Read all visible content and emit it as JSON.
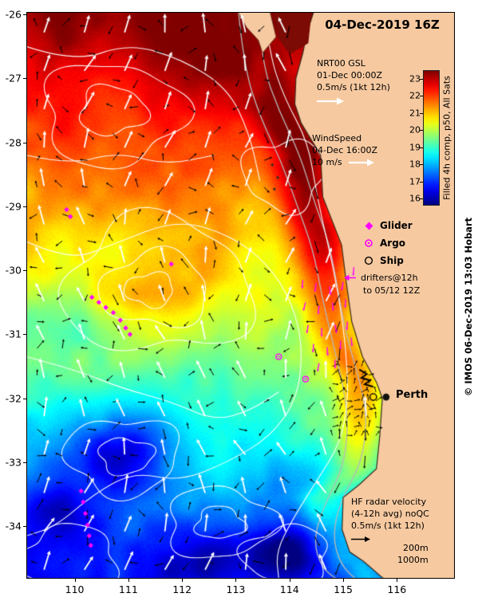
{
  "title": "04-Dec-2019 16Z",
  "annotations": {
    "gsl": {
      "l1": "NRT00 GSL",
      "l2": "01-Dec 00:00Z",
      "l3": "0.5m/s (1kt 12h)"
    },
    "wind": {
      "l1": "WindSpeed",
      "l2": "04-Dec 16:00Z",
      "l3": "10 m/s"
    },
    "hf": {
      "l1": "HF radar velocity",
      "l2": "(4-12h avg) noQC",
      "l3": "0.5m/s (1kt 12h)"
    },
    "isobaths": {
      "c200": "200m",
      "c1000": "1000m"
    },
    "perth": "Perth",
    "credit": "© IMOS 06-Dec-2019 13:03 Hobart"
  },
  "legend": {
    "glider": "Glider",
    "argo": "Argo",
    "ship": "Ship",
    "drifters_l1": "drifters@12h",
    "drifters_l2": "to 05/12 12Z"
  },
  "colorbar": {
    "label": "Filled 4h comp, p50, All Sats",
    "ticks": [
      23,
      22,
      21,
      20,
      19,
      18,
      17,
      16
    ],
    "tmin": 15.6,
    "tmax": 23.5
  },
  "axes": {
    "x_ticks": [
      110,
      111,
      112,
      113,
      114,
      115,
      116
    ],
    "y_ticks": [
      -26,
      -27,
      -28,
      -29,
      -30,
      -31,
      -32,
      -33,
      -34
    ],
    "lon_min": 109.1,
    "lon_max": 117.08,
    "lat_min": -34.82,
    "lat_max": -25.96
  },
  "map": {
    "land_color": "#f6c9a0",
    "marker_color": "#ff00ff",
    "coast": [
      [
        -25.96,
        114.45
      ],
      [
        -26.3,
        114.32
      ],
      [
        -26.6,
        114.25
      ],
      [
        -27.0,
        114.12
      ],
      [
        -27.4,
        114.1
      ],
      [
        -27.7,
        114.22
      ],
      [
        -28.2,
        114.58
      ],
      [
        -28.85,
        114.62
      ],
      [
        -29.6,
        114.97
      ],
      [
        -30.2,
        115.06
      ],
      [
        -30.8,
        115.16
      ],
      [
        -31.35,
        115.36
      ],
      [
        -31.75,
        115.62
      ],
      [
        -32.0,
        115.73
      ],
      [
        -32.6,
        115.68
      ],
      [
        -33.1,
        115.62
      ],
      [
        -33.35,
        115.3
      ],
      [
        -33.55,
        115.0
      ],
      [
        -34.05,
        114.98
      ],
      [
        -34.4,
        115.12
      ],
      [
        -34.55,
        115.38
      ],
      [
        -34.84,
        115.78
      ]
    ],
    "peninsula": [
      [
        113.0,
        -25.9
      ],
      [
        113.62,
        -25.9
      ],
      [
        113.75,
        -26.35
      ],
      [
        113.5,
        -26.6
      ],
      [
        113.42,
        -26.4
      ],
      [
        113.2,
        -26.2
      ]
    ],
    "bay": [
      [
        113.7,
        -25.9
      ],
      [
        114.42,
        -25.9
      ],
      [
        114.35,
        -26.45
      ],
      [
        114.0,
        -26.62
      ],
      [
        113.78,
        -26.35
      ]
    ],
    "islands": [
      [
        113.68,
        -28.35
      ],
      [
        113.78,
        -28.55
      ],
      [
        113.72,
        -28.73
      ]
    ],
    "eddies": [
      [
        111.45,
        -30.35,
        1.05,
        0.65,
        0.95
      ],
      [
        110.85,
        -32.85,
        0.85,
        0.55,
        -1.7
      ],
      [
        113.95,
        -34.35,
        0.95,
        0.5,
        -2.1
      ],
      [
        109.7,
        -33.8,
        0.8,
        0.5,
        -1.2
      ],
      [
        112.3,
        -34.6,
        0.9,
        0.4,
        -0.9
      ],
      [
        112.8,
        -26.7,
        1.0,
        0.5,
        0.55
      ],
      [
        109.9,
        -30.9,
        0.7,
        0.45,
        -0.5
      ]
    ],
    "ssh_loops": [
      [
        110.7,
        -27.55,
        1.3,
        0.8,
        1
      ],
      [
        110.7,
        -27.5,
        0.62,
        0.38,
        2
      ],
      [
        111.55,
        -30.25,
        1.75,
        1.05,
        3
      ],
      [
        111.5,
        -30.3,
        1.0,
        0.58,
        4
      ],
      [
        111.4,
        -30.3,
        0.45,
        0.26,
        5
      ],
      [
        110.9,
        -32.9,
        1.05,
        0.6,
        6
      ],
      [
        110.95,
        -32.9,
        0.5,
        0.28,
        7
      ],
      [
        112.7,
        -33.95,
        1.0,
        0.55,
        8
      ],
      [
        112.7,
        -33.95,
        0.45,
        0.25,
        9
      ],
      [
        109.9,
        -34.5,
        0.9,
        0.5,
        10
      ],
      [
        113.95,
        -34.45,
        0.8,
        0.45,
        11
      ],
      [
        113.9,
        -28.5,
        0.75,
        0.55,
        12
      ]
    ],
    "ssh_lines": [
      [
        [
          113.55,
          -25.96
        ],
        [
          113.62,
          -26.6
        ],
        [
          113.9,
          -27.3
        ],
        [
          114.35,
          -28.0
        ],
        [
          114.5,
          -28.8
        ],
        [
          114.72,
          -29.6
        ],
        [
          114.92,
          -30.4
        ],
        [
          115.05,
          -31.2
        ],
        [
          115.1,
          -32.0
        ],
        [
          114.95,
          -32.7
        ],
        [
          114.5,
          -33.3
        ],
        [
          114.05,
          -33.9
        ],
        [
          113.75,
          -34.4
        ],
        [
          113.8,
          -34.82
        ]
      ],
      [
        [
          109.1,
          -29.55
        ],
        [
          109.9,
          -29.85
        ],
        [
          110.7,
          -29.6
        ],
        [
          111.9,
          -29.2
        ],
        [
          112.9,
          -29.45
        ],
        [
          113.6,
          -29.9
        ],
        [
          114.05,
          -30.5
        ],
        [
          114.25,
          -31.2
        ],
        [
          114.15,
          -32.0
        ],
        [
          113.65,
          -32.6
        ],
        [
          112.85,
          -33.0
        ],
        [
          111.95,
          -33.3
        ],
        [
          111.1,
          -33.15
        ],
        [
          110.35,
          -33.5
        ],
        [
          109.65,
          -34.0
        ],
        [
          109.1,
          -34.15
        ]
      ],
      [
        [
          109.1,
          -26.5
        ],
        [
          110.0,
          -26.75
        ],
        [
          111.0,
          -26.45
        ],
        [
          112.0,
          -26.7
        ],
        [
          112.85,
          -27.15
        ],
        [
          113.25,
          -27.85
        ],
        [
          113.45,
          -28.6
        ]
      ],
      [
        [
          109.1,
          -31.35
        ],
        [
          110.0,
          -31.55
        ],
        [
          110.9,
          -31.85
        ],
        [
          111.8,
          -32.05
        ],
        [
          112.6,
          -32.35
        ],
        [
          113.25,
          -32.2
        ],
        [
          113.8,
          -31.9
        ]
      ],
      [
        [
          109.1,
          -28.2
        ],
        [
          109.9,
          -28.35
        ],
        [
          110.8,
          -28.15
        ],
        [
          111.7,
          -28.35
        ],
        [
          112.6,
          -28.2
        ]
      ]
    ],
    "isobaths": [
      [
        [
          113.4,
          -25.96
        ],
        [
          113.5,
          -26.8
        ],
        [
          113.8,
          -27.5
        ],
        [
          114.2,
          -28.2
        ],
        [
          114.45,
          -28.9
        ],
        [
          114.75,
          -29.6
        ],
        [
          114.9,
          -30.3
        ],
        [
          115.05,
          -31.0
        ],
        [
          115.3,
          -31.7
        ],
        [
          115.45,
          -32.3
        ],
        [
          115.35,
          -33.0
        ],
        [
          114.95,
          -33.6
        ],
        [
          114.8,
          -34.15
        ],
        [
          114.95,
          -34.6
        ],
        [
          115.25,
          -34.84
        ]
      ],
      [
        [
          113.05,
          -25.96
        ],
        [
          113.15,
          -26.8
        ],
        [
          113.45,
          -27.6
        ],
        [
          113.85,
          -28.3
        ],
        [
          114.15,
          -29.0
        ],
        [
          114.45,
          -29.7
        ],
        [
          114.6,
          -30.4
        ],
        [
          114.8,
          -31.1
        ],
        [
          115.0,
          -31.8
        ],
        [
          115.1,
          -32.4
        ],
        [
          115.0,
          -33.1
        ],
        [
          114.6,
          -33.75
        ],
        [
          114.45,
          -34.25
        ],
        [
          114.6,
          -34.65
        ],
        [
          114.9,
          -34.84
        ]
      ]
    ],
    "gliders": [
      [
        110.32,
        -30.42
      ],
      [
        110.45,
        -30.5
      ],
      [
        110.58,
        -30.58
      ],
      [
        110.72,
        -30.66
      ],
      [
        110.85,
        -30.78
      ],
      [
        110.95,
        -30.9
      ],
      [
        111.03,
        -31.0
      ],
      [
        109.85,
        -29.05
      ],
      [
        109.92,
        -29.16
      ],
      [
        111.8,
        -29.9
      ],
      [
        110.12,
        -33.45
      ],
      [
        110.16,
        -33.62
      ],
      [
        110.2,
        -33.8
      ],
      [
        110.24,
        -33.98
      ],
      [
        110.27,
        -34.15
      ],
      [
        110.3,
        -34.3
      ]
    ],
    "argo_floats": [
      [
        113.8,
        -31.35
      ],
      [
        114.3,
        -31.7
      ]
    ],
    "drifters": [
      [
        114.25,
        -30.15,
        95
      ],
      [
        114.5,
        -30.2,
        100
      ],
      [
        114.75,
        -30.25,
        85
      ],
      [
        115.0,
        -30.18,
        100
      ],
      [
        115.2,
        -29.95,
        95
      ],
      [
        114.3,
        -30.5,
        105
      ],
      [
        114.55,
        -30.55,
        95
      ],
      [
        114.8,
        -30.5,
        85
      ],
      [
        115.05,
        -30.45,
        95
      ],
      [
        114.35,
        -30.85,
        100
      ],
      [
        114.6,
        -30.9,
        90
      ],
      [
        114.85,
        -30.85,
        80
      ],
      [
        115.08,
        -30.8,
        95
      ],
      [
        114.45,
        -31.15,
        95
      ],
      [
        114.7,
        -31.2,
        85
      ],
      [
        114.95,
        -31.1,
        90
      ],
      [
        115.15,
        -31.05,
        85
      ],
      [
        114.55,
        -31.45,
        100
      ],
      [
        114.85,
        -31.4,
        90
      ]
    ],
    "ship_track": [
      [
        115.3,
        -31.55
      ],
      [
        115.44,
        -31.62
      ],
      [
        115.34,
        -31.68
      ],
      [
        115.5,
        -31.72
      ],
      [
        115.4,
        -31.78
      ],
      [
        115.56,
        -31.82
      ]
    ],
    "ship_pos": [
      115.56,
      -31.98
    ],
    "perth_pos": [
      115.8,
      -31.98
    ]
  }
}
